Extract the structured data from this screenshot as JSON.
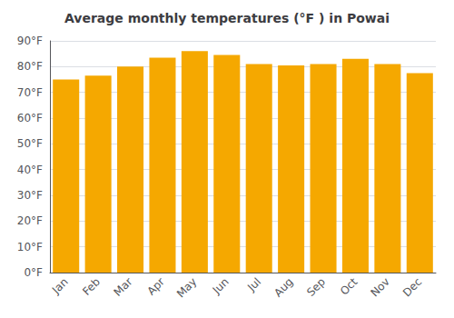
{
  "chart_data": {
    "type": "bar",
    "title": "Average monthly temperatures (°F ) in Powai",
    "categories": [
      "Jan",
      "Feb",
      "Mar",
      "Apr",
      "May",
      "Jun",
      "Jul",
      "Aug",
      "Sep",
      "Oct",
      "Nov",
      "Dec"
    ],
    "values": [
      75,
      76.5,
      80,
      83.5,
      86,
      84.5,
      81,
      80.5,
      81,
      83,
      81,
      77.5
    ],
    "color": "#F5A800",
    "ylim": [
      0,
      90
    ],
    "yticks": [
      {
        "value": 0,
        "label": "0°F"
      },
      {
        "value": 10,
        "label": "10°F"
      },
      {
        "value": 20,
        "label": "20°F"
      },
      {
        "value": 30,
        "label": "30°F"
      },
      {
        "value": 40,
        "label": "40°F"
      },
      {
        "value": 50,
        "label": "50°F"
      },
      {
        "value": 60,
        "label": "60°F"
      },
      {
        "value": 70,
        "label": "70°F"
      },
      {
        "value": 80,
        "label": "80°F"
      },
      {
        "value": 90,
        "label": "90°F"
      }
    ],
    "grid": true
  }
}
